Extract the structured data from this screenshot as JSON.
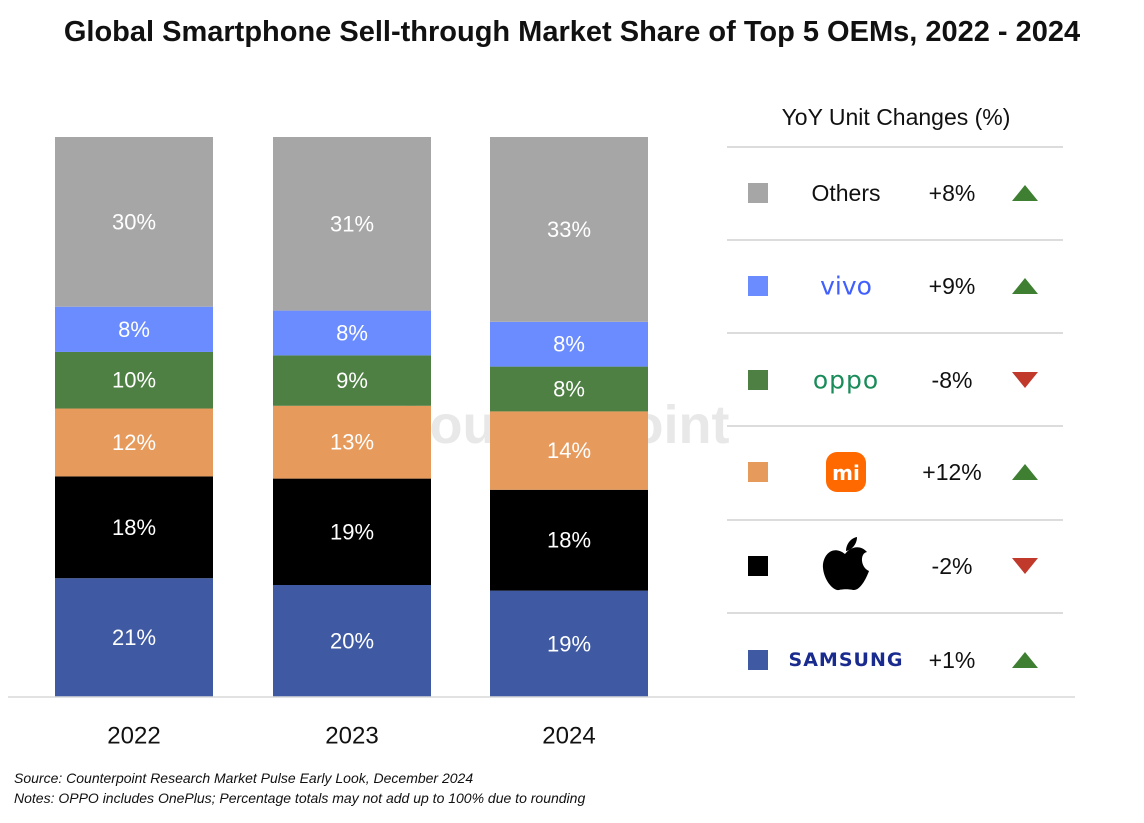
{
  "title": "Global Smartphone Sell-through Market Share of Top 5 OEMs, 2022 - 2024",
  "watermark": "Counterpoint",
  "legend": {
    "title": "YoY Unit Changes (%)",
    "items": [
      {
        "brand": "Others",
        "change": "+8%",
        "direction": "up",
        "color": "#a6a6a6",
        "brand_style": "text"
      },
      {
        "brand": "vivo",
        "change": "+9%",
        "direction": "up",
        "color": "#6b8cff",
        "brand_style": "vivo"
      },
      {
        "brand": "oppo",
        "change": "-8%",
        "direction": "down",
        "color": "#4e7f43",
        "brand_style": "oppo"
      },
      {
        "brand": "mi",
        "change": "+12%",
        "direction": "up",
        "color": "#e69a5c",
        "brand_style": "mi"
      },
      {
        "brand": "apple-logo",
        "change": "-2%",
        "direction": "down",
        "color": "#000000",
        "brand_style": "apple"
      },
      {
        "brand": "SAMSUNG",
        "change": "+1%",
        "direction": "up",
        "color": "#3f5aa2",
        "brand_style": "samsung"
      }
    ],
    "up_color": "#3f7f32",
    "down_color": "#c0392b"
  },
  "footnotes": {
    "source": "Source: Counterpoint Research Market Pulse Early Look, December 2024",
    "notes": "Notes: OPPO includes OnePlus; Percentage totals may not add up to 100% due to rounding"
  },
  "chart_data": {
    "type": "bar",
    "stacked": true,
    "categories": [
      "2022",
      "2023",
      "2024"
    ],
    "series": [
      {
        "name": "Samsung",
        "color": "#3f5aa2",
        "values": [
          21,
          20,
          19
        ],
        "labels": [
          "21%",
          "20%",
          "19%"
        ]
      },
      {
        "name": "Apple",
        "color": "#000000",
        "values": [
          18,
          19,
          18
        ],
        "labels": [
          "18%",
          "19%",
          "18%"
        ]
      },
      {
        "name": "Xiaomi",
        "color": "#e69a5c",
        "values": [
          12,
          13,
          14
        ],
        "labels": [
          "12%",
          "13%",
          "14%"
        ]
      },
      {
        "name": "OPPO",
        "color": "#4e7f43",
        "values": [
          10,
          9,
          8
        ],
        "labels": [
          "10%",
          "9%",
          "8%"
        ]
      },
      {
        "name": "vivo",
        "color": "#6b8cff",
        "values": [
          8,
          8,
          8
        ],
        "labels": [
          "8%",
          "8%",
          "8%"
        ]
      },
      {
        "name": "Others",
        "color": "#a6a6a6",
        "values": [
          30,
          31,
          33
        ],
        "labels": [
          "30%",
          "31%",
          "33%"
        ]
      }
    ],
    "ylim": [
      0,
      100
    ],
    "grid": false,
    "legend_position": "right"
  }
}
